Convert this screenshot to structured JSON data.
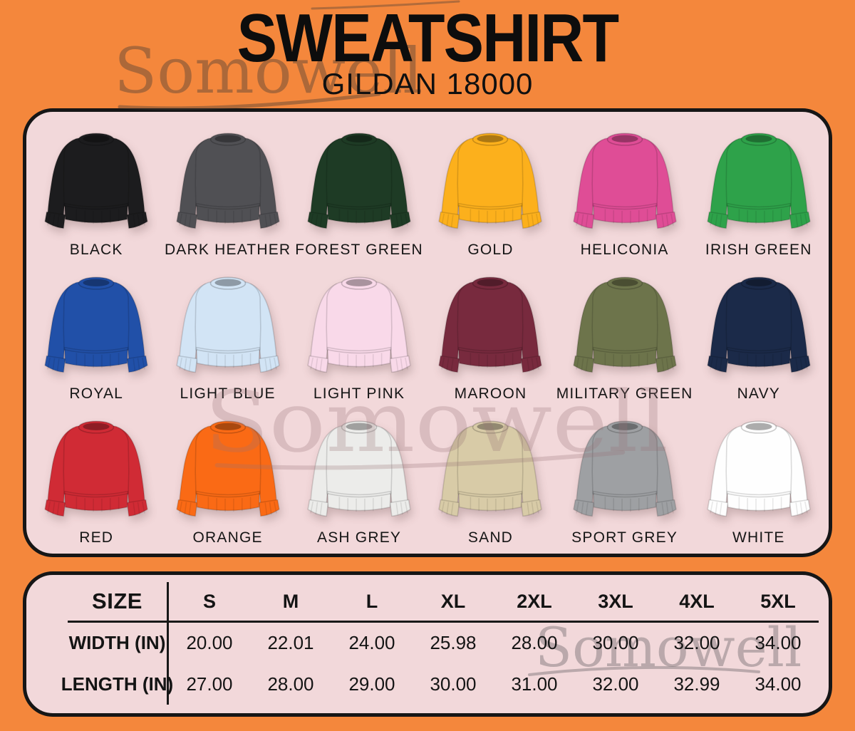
{
  "brand_watermark": "Somowell",
  "header": {
    "title": "SWEATSHIRT",
    "subtitle": "GILDAN 18000"
  },
  "colors": {
    "background": "#F4873C",
    "panel_bg": "#F2D8DA",
    "panel_border": "#161616",
    "title_text": "#0D0D0D"
  },
  "swatches": [
    {
      "label": "BLACK",
      "hex": "#1c1c1e"
    },
    {
      "label": "DARK HEATHER",
      "hex": "#505054"
    },
    {
      "label": "FOREST GREEN",
      "hex": "#1e3b25"
    },
    {
      "label": "GOLD",
      "hex": "#fcb01c"
    },
    {
      "label": "HELICONIA",
      "hex": "#df4d96"
    },
    {
      "label": "IRISH GREEN",
      "hex": "#2ea24a"
    },
    {
      "label": "ROYAL",
      "hex": "#2150a8"
    },
    {
      "label": "LIGHT BLUE",
      "hex": "#d2e4f5"
    },
    {
      "label": "LIGHT PINK",
      "hex": "#f9d9e9"
    },
    {
      "label": "MAROON",
      "hex": "#782a3e"
    },
    {
      "label": "MILITARY GREEN",
      "hex": "#6d744b"
    },
    {
      "label": "NAVY",
      "hex": "#1b2a49"
    },
    {
      "label": "RED",
      "hex": "#d02b35"
    },
    {
      "label": "ORANGE",
      "hex": "#fa6a15"
    },
    {
      "label": "ASH GREY",
      "hex": "#ececea"
    },
    {
      "label": "SAND",
      "hex": "#d8cba7"
    },
    {
      "label": "SPORT GREY",
      "hex": "#9ea0a3"
    },
    {
      "label": "WHITE",
      "hex": "#fefefe"
    }
  ],
  "size_table": {
    "corner_label": "SIZE",
    "columns": [
      "S",
      "M",
      "L",
      "XL",
      "2XL",
      "3XL",
      "4XL",
      "5XL"
    ],
    "rows": [
      {
        "label": "WIDTH (IN)",
        "values": [
          "20.00",
          "22.01",
          "24.00",
          "25.98",
          "28.00",
          "30.00",
          "32.00",
          "34.00"
        ]
      },
      {
        "label": "LENGTH (IN)",
        "values": [
          "27.00",
          "28.00",
          "29.00",
          "30.00",
          "31.00",
          "32.00",
          "32.99",
          "34.00"
        ]
      }
    ]
  }
}
